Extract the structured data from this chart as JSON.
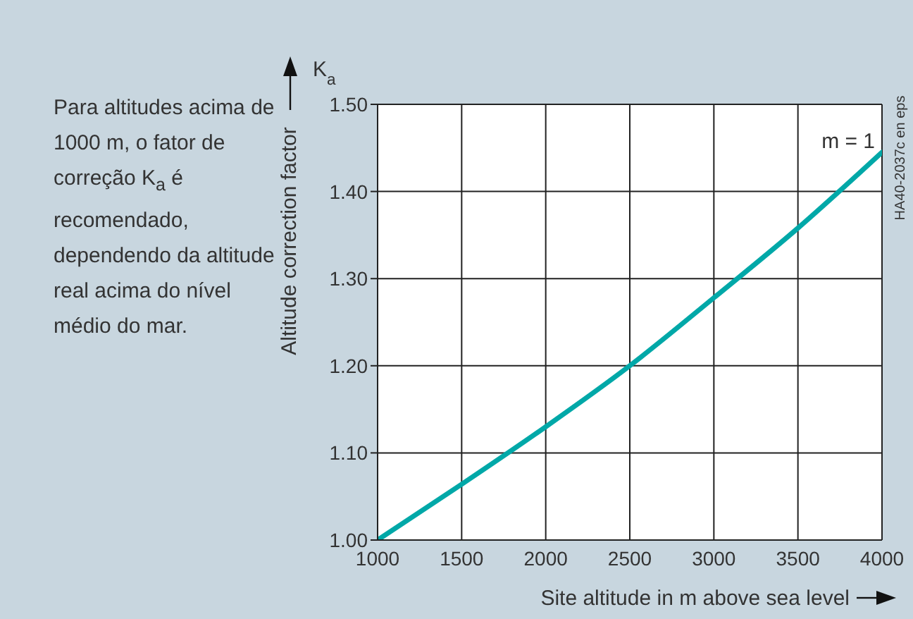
{
  "chart_data": {
    "type": "line",
    "ylabel": "Altitude correction factor",
    "xlabel": "Site altitude in m above sea level",
    "annotations": [
      "Para altitudes acima de 1000 m, o fator de correção K$_{a}$ é recomendado, dependendo da altitude real acima do nível médio do mar.",
      "K$_{a}$",
      "HA40-2037c en eps"
    ],
    "x": [
      1000,
      1500,
      2000,
      2500,
      3000,
      3500,
      4000
    ],
    "series": [
      {
        "name": "m = 1",
        "color": "#00a8a8",
        "values": [
          1.0,
          1.064,
          1.13,
          1.2,
          1.278,
          1.358,
          1.445
        ]
      }
    ],
    "xlim": [
      1000,
      4000
    ],
    "xticks": [
      1000,
      1500,
      2000,
      2500,
      3000,
      3500,
      4000
    ],
    "ylim": [
      1.0,
      1.5
    ],
    "yticks": [
      {
        "value": 1.0,
        "label": "1.00"
      },
      {
        "value": 1.1,
        "label": "1.10"
      },
      {
        "value": 1.2,
        "label": "1.20"
      },
      {
        "value": 1.3,
        "label": "1.30"
      },
      {
        "value": 1.4,
        "label": "1.40"
      },
      {
        "value": 1.5,
        "label": "1.50"
      }
    ],
    "grid": true
  }
}
